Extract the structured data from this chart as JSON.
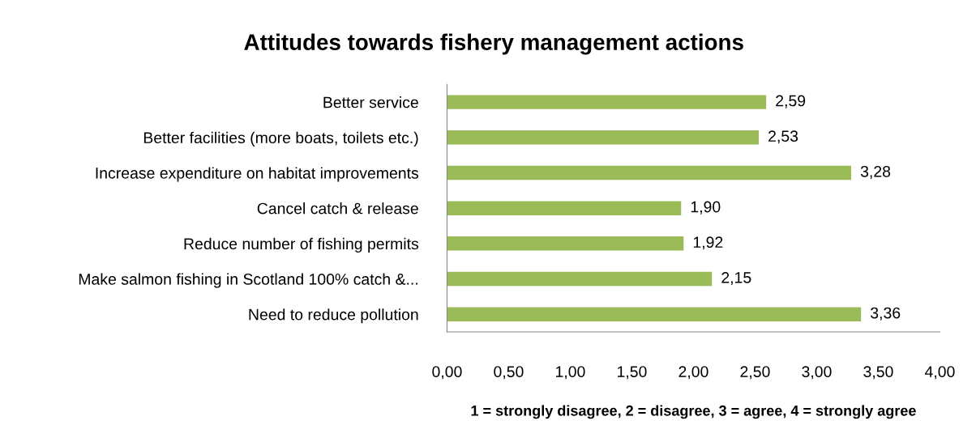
{
  "chart_data": {
    "type": "bar",
    "orientation": "horizontal",
    "title": "Attitudes towards fishery management actions",
    "xlabel": "1 = strongly disagree, 2 = disagree, 3 = agree, 4 = strongly agree",
    "categories": [
      "Better service",
      "Better facilities (more boats, toilets etc.)",
      "Increase expenditure on habitat improvements",
      "Cancel catch & release",
      "Reduce number of fishing permits",
      "Make salmon fishing in Scotland 100% catch &...",
      "Need to reduce pollution"
    ],
    "values": [
      2.59,
      2.53,
      3.28,
      1.9,
      1.92,
      2.15,
      3.36
    ],
    "value_labels": [
      "2,59",
      "2,53",
      "3,28",
      "1,90",
      "1,92",
      "2,15",
      "3,36"
    ],
    "color": "#9bbb59",
    "xlim": [
      0,
      4
    ],
    "xticks": [
      {
        "value": 0,
        "label": "0,00"
      },
      {
        "value": 0.5,
        "label": "0,50"
      },
      {
        "value": 1,
        "label": "1,00"
      },
      {
        "value": 1.5,
        "label": "1,50"
      },
      {
        "value": 2,
        "label": "2,00"
      },
      {
        "value": 2.5,
        "label": "2,50"
      },
      {
        "value": 3,
        "label": "3,00"
      },
      {
        "value": 3.5,
        "label": "3,50"
      },
      {
        "value": 4,
        "label": "4,00"
      }
    ],
    "grid": false
  }
}
